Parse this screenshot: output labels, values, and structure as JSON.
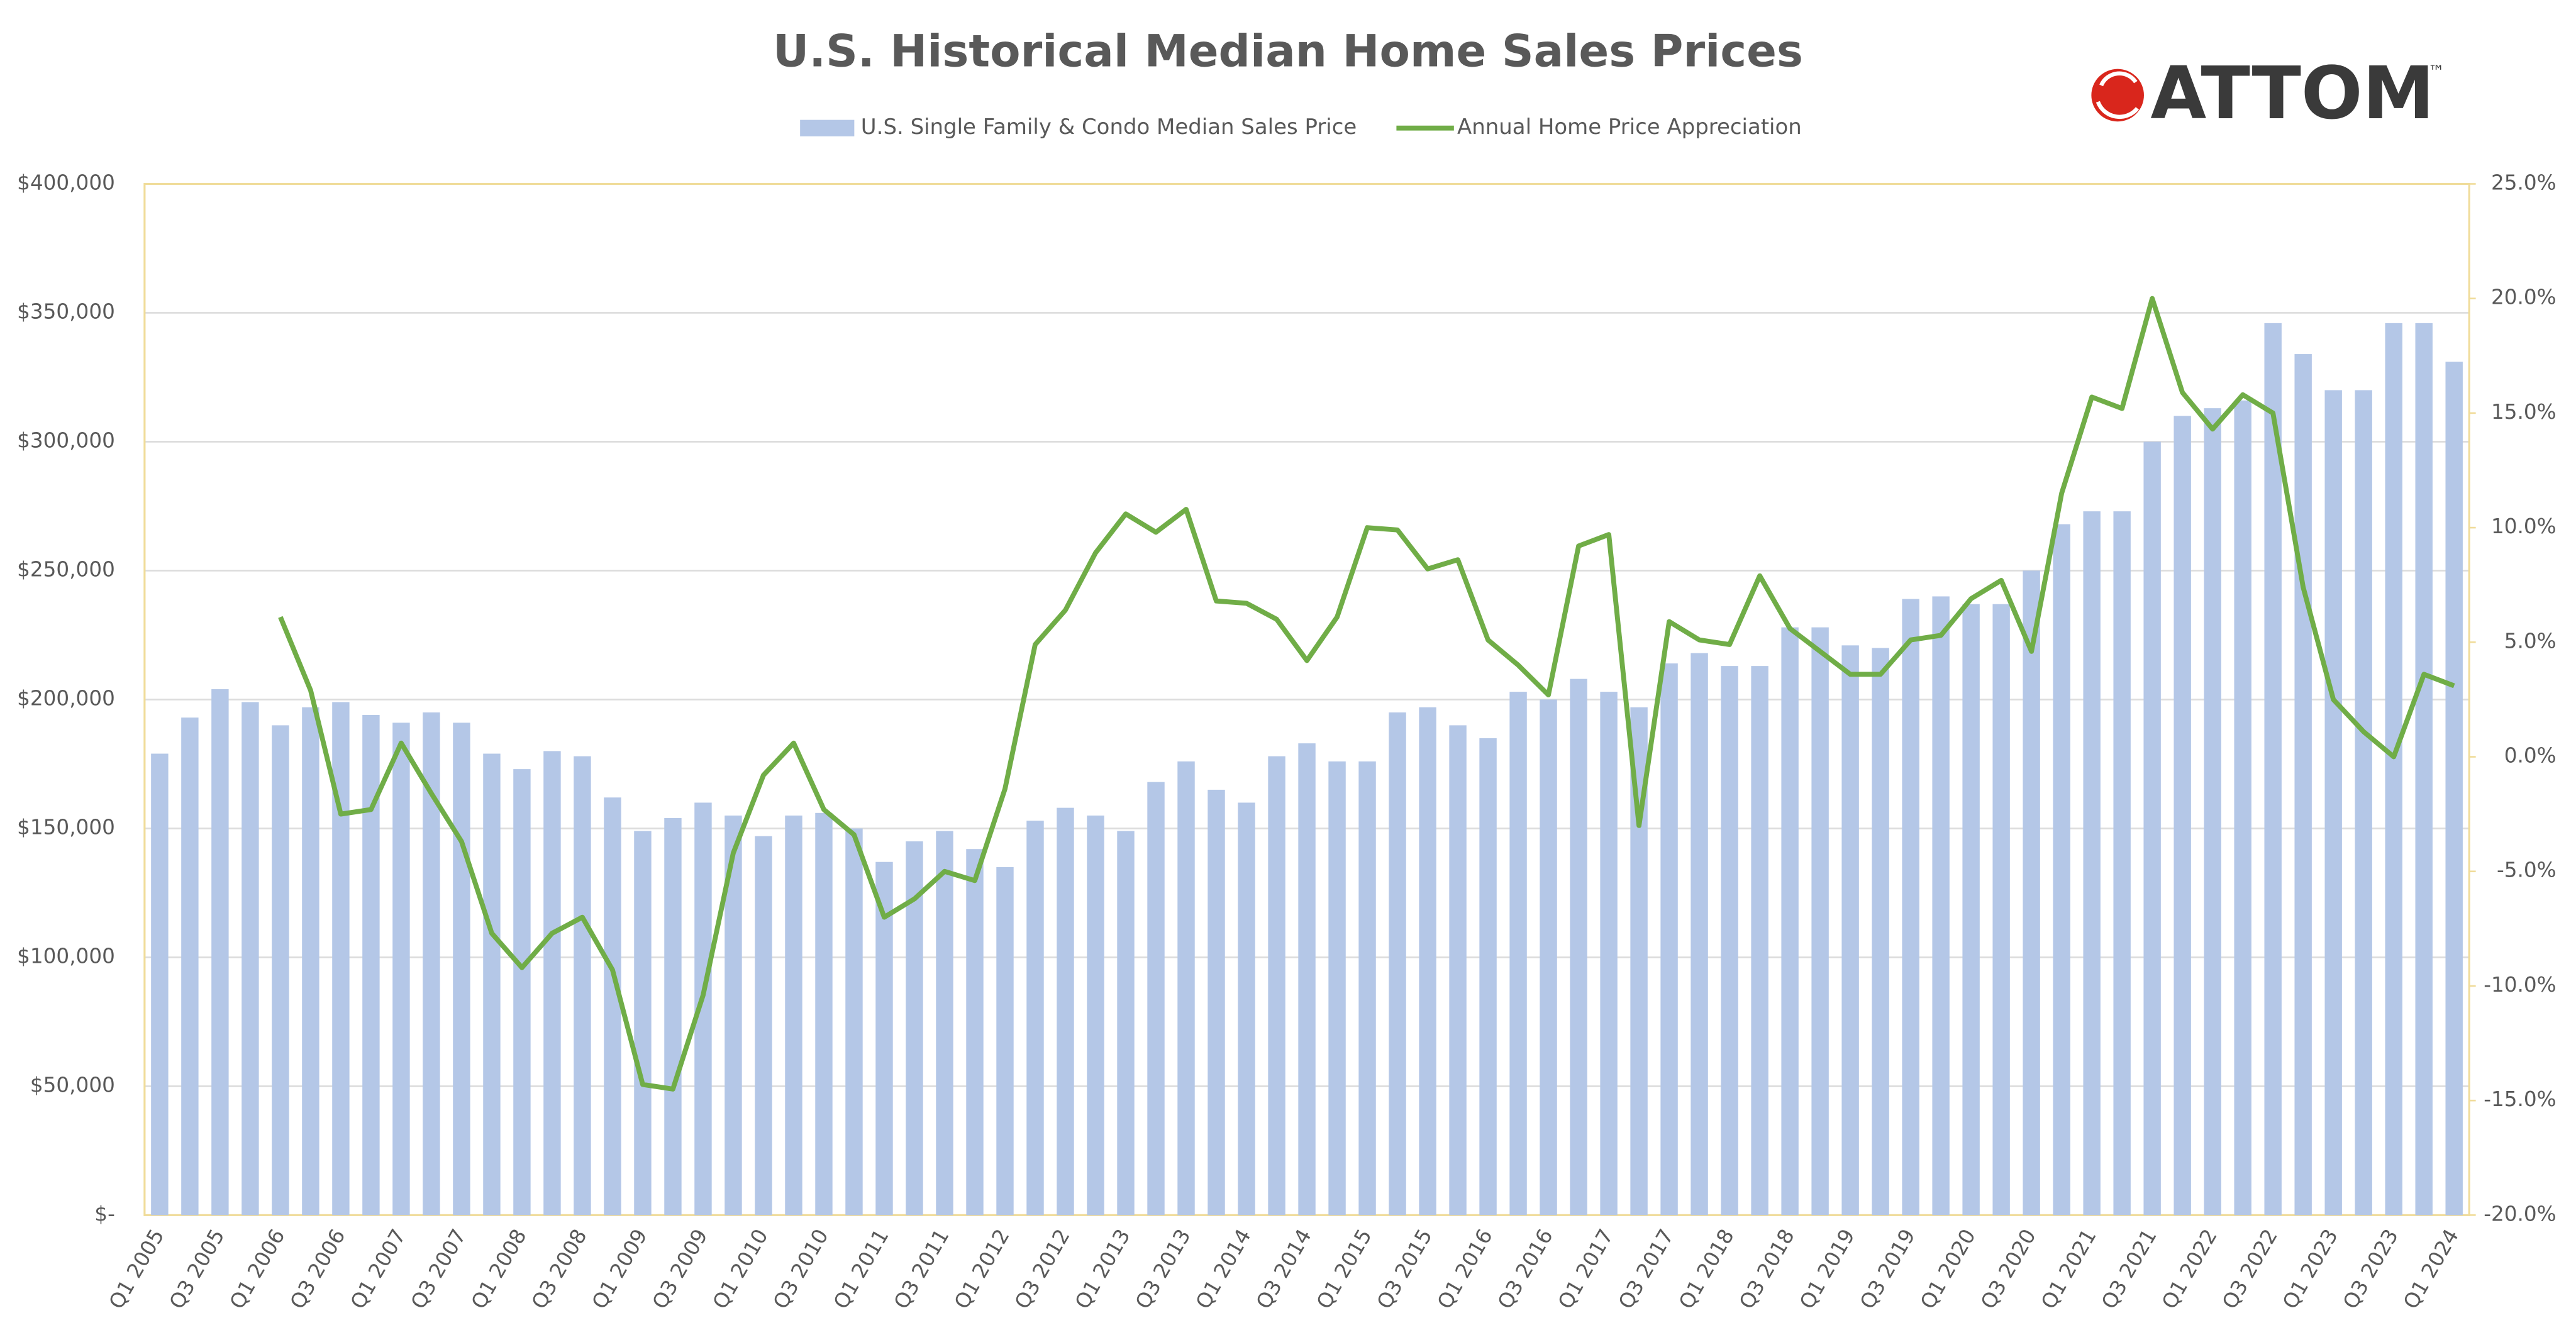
{
  "chart_data": {
    "type": "bar",
    "title": "U.S. Historical Median Home Sales Prices",
    "logo": "ATTOM",
    "logo_mark": "™",
    "legend": "top",
    "grid": true,
    "categories": [
      "Q1 2005",
      null,
      "Q3 2005",
      null,
      "Q1 2006",
      null,
      "Q3 2006",
      null,
      "Q1 2007",
      null,
      "Q3 2007",
      null,
      "Q1 2008",
      null,
      "Q3 2008",
      null,
      "Q1 2009",
      null,
      "Q3 2009",
      null,
      "Q1 2010",
      null,
      "Q3 2010",
      null,
      "Q1 2011",
      null,
      "Q3 2011",
      null,
      "Q1 2012",
      null,
      "Q3 2012",
      null,
      "Q1 2013",
      null,
      "Q3 2013",
      null,
      "Q1 2014",
      null,
      "Q3 2014",
      null,
      "Q1 2015",
      null,
      "Q3 2015",
      null,
      "Q1 2016",
      null,
      "Q3 2016",
      null,
      "Q1 2017",
      null,
      "Q3 2017",
      null,
      "Q1 2018",
      null,
      "Q3 2018",
      null,
      "Q1 2019",
      null,
      "Q3 2019",
      null,
      "Q1 2020",
      null,
      "Q3 2020",
      null,
      "Q1 2021",
      null,
      "Q3 2021",
      null,
      "Q1 2022",
      null,
      "Q3 2022",
      null,
      "Q1 2023",
      null,
      "Q3 2023",
      null,
      "Q1 2024"
    ],
    "series": [
      {
        "name": "U.S. Single Family & Condo Median Sales Price",
        "type": "bar",
        "color": "#b4c7e7",
        "values": [
          179000,
          193000,
          204000,
          199000,
          190000,
          197000,
          199000,
          194000,
          191000,
          195000,
          191000,
          179000,
          173000,
          180000,
          178000,
          162000,
          149000,
          154000,
          160000,
          155000,
          147000,
          155000,
          156000,
          150000,
          137000,
          145000,
          149000,
          142000,
          135000,
          153000,
          158000,
          155000,
          149000,
          168000,
          176000,
          165000,
          160000,
          178000,
          183000,
          176000,
          176000,
          195000,
          197000,
          190000,
          185000,
          203000,
          200000,
          208000,
          203000,
          197000,
          214000,
          218000,
          213000,
          213000,
          228000,
          228000,
          221000,
          220000,
          239000,
          240000,
          237000,
          237000,
          250000,
          268000,
          273000,
          273000,
          300000,
          310000,
          313000,
          316000,
          346000,
          334000,
          320000,
          320000,
          346000,
          346000,
          331000
        ]
      },
      {
        "name": "Annual Home Price Appreciation",
        "type": "line",
        "axis": "y2",
        "color": "#70ad47",
        "values": [
          null,
          null,
          null,
          null,
          6.1,
          2.9,
          -2.5,
          -2.3,
          0.6,
          -1.6,
          -3.7,
          -7.7,
          -9.2,
          -7.7,
          -7.0,
          -9.3,
          -14.3,
          -14.5,
          -10.4,
          -4.2,
          -0.8,
          0.6,
          -2.3,
          -3.4,
          -7.0,
          -6.2,
          -5.0,
          -5.4,
          -1.4,
          4.9,
          6.4,
          8.9,
          10.6,
          9.8,
          10.8,
          6.8,
          6.7,
          6.0,
          4.2,
          6.1,
          10.0,
          9.9,
          8.2,
          8.6,
          5.1,
          4.0,
          2.7,
          9.2,
          9.7,
          -3.0,
          5.9,
          5.1,
          4.9,
          7.9,
          5.6,
          4.6,
          3.6,
          3.6,
          5.1,
          5.3,
          6.9,
          7.7,
          4.6,
          11.5,
          15.7,
          15.2,
          20.0,
          15.9,
          14.3,
          15.8,
          15.0,
          7.4,
          2.5,
          1.1,
          0.0,
          3.6,
          3.1
        ]
      }
    ],
    "ylim": [
      0,
      400000
    ],
    "yticks": [
      {
        "value": 0,
        "label": "$-"
      },
      {
        "value": 50000,
        "label": "$50,000"
      },
      {
        "value": 100000,
        "label": "$100,000"
      },
      {
        "value": 150000,
        "label": "$150,000"
      },
      {
        "value": 200000,
        "label": "$200,000"
      },
      {
        "value": 250000,
        "label": "$250,000"
      },
      {
        "value": 300000,
        "label": "$300,000"
      },
      {
        "value": 350000,
        "label": "$350,000"
      },
      {
        "value": 400000,
        "label": "$400,000"
      }
    ],
    "y2lim": [
      -20,
      25
    ],
    "y2ticks": [
      {
        "value": -20,
        "label": "-20.0%"
      },
      {
        "value": -15,
        "label": "-15.0%"
      },
      {
        "value": -10,
        "label": "-10.0%"
      },
      {
        "value": -5,
        "label": "-5.0%"
      },
      {
        "value": 0,
        "label": "0.0%"
      },
      {
        "value": 5,
        "label": "5.0%"
      },
      {
        "value": 10,
        "label": "10.0%"
      },
      {
        "value": 15,
        "label": "15.0%"
      },
      {
        "value": 20,
        "label": "20.0%"
      },
      {
        "value": 25,
        "label": "25.0%"
      }
    ]
  }
}
